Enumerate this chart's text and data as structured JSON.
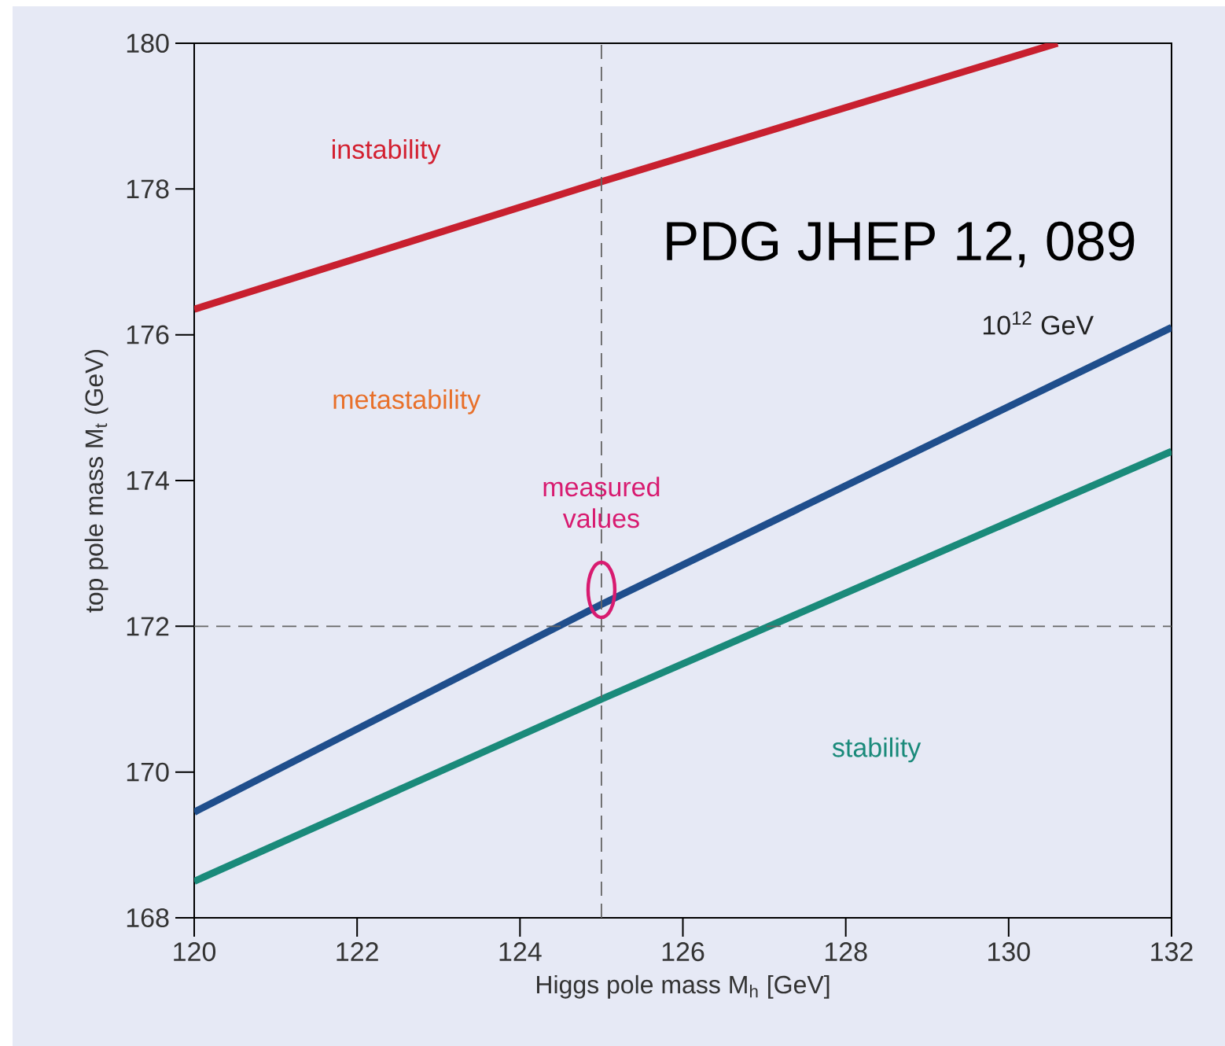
{
  "chart_data": {
    "type": "line",
    "xlabel": "Higgs pole mass M$_{h}$ [GeV]",
    "ylabel": "top pole mass M$_{t}$ (GeV)",
    "xlim": [
      120,
      132
    ],
    "ylim": [
      168,
      180
    ],
    "xticks": [
      120,
      122,
      124,
      126,
      128,
      130,
      132
    ],
    "yticks": [
      168,
      170,
      172,
      174,
      176,
      178,
      180
    ],
    "series": [
      {
        "color": "#c8202f",
        "x": [
          120,
          125,
          130.6
        ],
        "values": [
          176.35,
          178.1,
          180
        ]
      },
      {
        "color": "#1f4e8c",
        "x": [
          120,
          125,
          132
        ],
        "values": [
          169.45,
          172.3,
          176.1
        ]
      },
      {
        "color": "#1a8a7a",
        "x": [
          120,
          125,
          132
        ],
        "values": [
          168.5,
          171.0,
          174.4
        ]
      }
    ],
    "ref_lines": [
      {
        "axis": "x",
        "value": 125,
        "color": "#666666",
        "line_style": "dashed"
      },
      {
        "axis": "y",
        "value": 172,
        "color": "#666666",
        "line_style": "dashed"
      }
    ],
    "annotations": [
      "instability",
      "metastability",
      {
        "text": "measured values",
        "x": 125,
        "y": 172.5
      },
      "stability",
      "10$^{12}$ GeV",
      "PDG JHEP 12, 089"
    ],
    "grid": false,
    "marker": "none",
    "line_style": "solid"
  }
}
